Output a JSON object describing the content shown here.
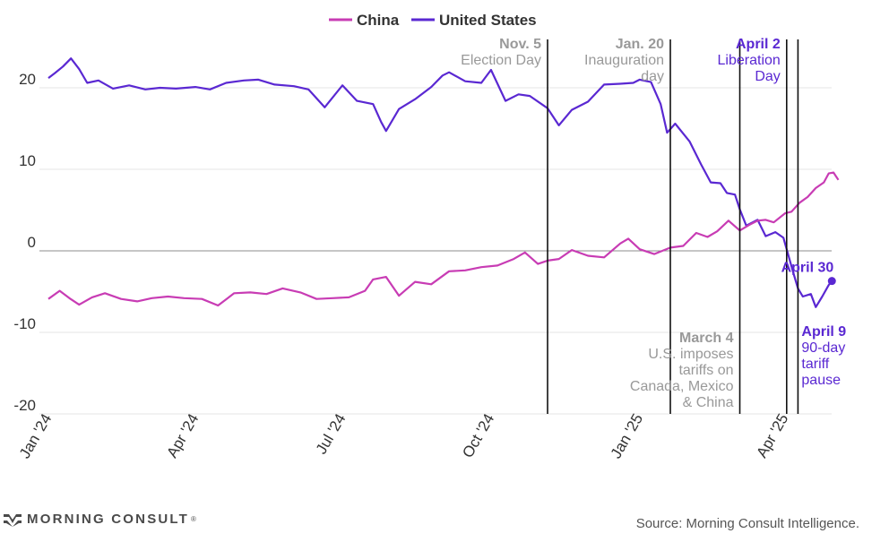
{
  "chart_data": {
    "type": "line",
    "legend": [
      {
        "name": "China",
        "color": "#c83cb4"
      },
      {
        "name": "United States",
        "color": "#5a28d2"
      }
    ],
    "legend_position": "top-center",
    "ylim": [
      -20,
      25
    ],
    "yticks": [
      20,
      10,
      0,
      -10,
      -20
    ],
    "ytick_labels": [
      "20",
      "10",
      "0",
      "-10",
      "-20"
    ],
    "xlim": [
      "2024-01-01",
      "2025-05-07"
    ],
    "xticks": [
      "2024-01-01",
      "2024-04-01",
      "2024-07-01",
      "2024-10-01",
      "2025-01-01",
      "2025-04-01"
    ],
    "xtick_labels": [
      "Jan '24",
      "Apr '24",
      "Jul '24",
      "Oct '24",
      "Jan '25",
      "Apr '25"
    ],
    "grid": "horizontal",
    "series": [
      {
        "name": "United States",
        "color": "#5a28d2",
        "points": [
          [
            "2024-01-01",
            21.2
          ],
          [
            "2024-01-05",
            21.8
          ],
          [
            "2024-01-10",
            22.6
          ],
          [
            "2024-01-15",
            23.6
          ],
          [
            "2024-01-20",
            22.3
          ],
          [
            "2024-01-25",
            20.6
          ],
          [
            "2024-02-01",
            20.9
          ],
          [
            "2024-02-10",
            19.9
          ],
          [
            "2024-02-20",
            20.3
          ],
          [
            "2024-03-01",
            19.8
          ],
          [
            "2024-03-10",
            20.0
          ],
          [
            "2024-03-20",
            19.9
          ],
          [
            "2024-04-01",
            20.1
          ],
          [
            "2024-04-10",
            19.8
          ],
          [
            "2024-04-20",
            20.6
          ],
          [
            "2024-05-01",
            20.9
          ],
          [
            "2024-05-10",
            21.0
          ],
          [
            "2024-05-20",
            20.4
          ],
          [
            "2024-06-01",
            20.2
          ],
          [
            "2024-06-10",
            19.8
          ],
          [
            "2024-06-20",
            17.6
          ],
          [
            "2024-07-01",
            20.3
          ],
          [
            "2024-07-10",
            18.4
          ],
          [
            "2024-07-20",
            18.0
          ],
          [
            "2024-07-25",
            15.8
          ],
          [
            "2024-07-28",
            14.7
          ],
          [
            "2024-08-05",
            17.4
          ],
          [
            "2024-08-15",
            18.6
          ],
          [
            "2024-08-25",
            20.1
          ],
          [
            "2024-09-01",
            21.5
          ],
          [
            "2024-09-05",
            21.9
          ],
          [
            "2024-09-15",
            20.8
          ],
          [
            "2024-09-25",
            20.6
          ],
          [
            "2024-10-01",
            22.2
          ],
          [
            "2024-10-10",
            18.4
          ],
          [
            "2024-10-18",
            19.2
          ],
          [
            "2024-10-25",
            19.0
          ],
          [
            "2024-11-05",
            17.5
          ],
          [
            "2024-11-12",
            15.4
          ],
          [
            "2024-11-20",
            17.3
          ],
          [
            "2024-11-30",
            18.3
          ],
          [
            "2024-12-10",
            20.4
          ],
          [
            "2024-12-20",
            20.5
          ],
          [
            "2024-12-28",
            20.6
          ],
          [
            "2025-01-01",
            21.0
          ],
          [
            "2025-01-08",
            20.7
          ],
          [
            "2025-01-14",
            18.0
          ],
          [
            "2025-01-18",
            14.5
          ],
          [
            "2025-01-23",
            15.6
          ],
          [
            "2025-02-01",
            13.4
          ],
          [
            "2025-02-08",
            10.6
          ],
          [
            "2025-02-14",
            8.4
          ],
          [
            "2025-02-20",
            8.3
          ],
          [
            "2025-02-24",
            7.1
          ],
          [
            "2025-03-01",
            6.9
          ],
          [
            "2025-03-04",
            5.1
          ],
          [
            "2025-03-08",
            3.1
          ],
          [
            "2025-03-15",
            3.8
          ],
          [
            "2025-03-20",
            1.8
          ],
          [
            "2025-03-26",
            2.3
          ],
          [
            "2025-03-31",
            1.6
          ],
          [
            "2025-04-03",
            -0.5
          ],
          [
            "2025-04-06",
            -2.6
          ],
          [
            "2025-04-09",
            -4.6
          ],
          [
            "2025-04-12",
            -5.6
          ],
          [
            "2025-04-17",
            -5.3
          ],
          [
            "2025-04-20",
            -6.9
          ],
          [
            "2025-04-24",
            -5.6
          ],
          [
            "2025-04-28",
            -4.2
          ],
          [
            "2025-04-30",
            -3.7
          ]
        ]
      },
      {
        "name": "China",
        "color": "#c83cb4",
        "points": [
          [
            "2024-01-01",
            -5.9
          ],
          [
            "2024-01-08",
            -4.9
          ],
          [
            "2024-01-14",
            -5.8
          ],
          [
            "2024-01-20",
            -6.6
          ],
          [
            "2024-01-28",
            -5.7
          ],
          [
            "2024-02-05",
            -5.2
          ],
          [
            "2024-02-15",
            -5.9
          ],
          [
            "2024-02-25",
            -6.2
          ],
          [
            "2024-03-05",
            -5.8
          ],
          [
            "2024-03-15",
            -5.6
          ],
          [
            "2024-03-25",
            -5.8
          ],
          [
            "2024-04-05",
            -5.9
          ],
          [
            "2024-04-15",
            -6.7
          ],
          [
            "2024-04-25",
            -5.2
          ],
          [
            "2024-05-05",
            -5.1
          ],
          [
            "2024-05-15",
            -5.3
          ],
          [
            "2024-05-25",
            -4.6
          ],
          [
            "2024-06-05",
            -5.1
          ],
          [
            "2024-06-15",
            -5.9
          ],
          [
            "2024-06-25",
            -5.8
          ],
          [
            "2024-07-05",
            -5.7
          ],
          [
            "2024-07-15",
            -4.9
          ],
          [
            "2024-07-20",
            -3.5
          ],
          [
            "2024-07-28",
            -3.2
          ],
          [
            "2024-08-05",
            -5.5
          ],
          [
            "2024-08-15",
            -3.8
          ],
          [
            "2024-08-25",
            -4.1
          ],
          [
            "2024-09-05",
            -2.5
          ],
          [
            "2024-09-15",
            -2.4
          ],
          [
            "2024-09-25",
            -2.0
          ],
          [
            "2024-10-05",
            -1.8
          ],
          [
            "2024-10-15",
            -1.0
          ],
          [
            "2024-10-22",
            -0.2
          ],
          [
            "2024-10-30",
            -1.6
          ],
          [
            "2024-11-05",
            -1.2
          ],
          [
            "2024-11-12",
            -1.0
          ],
          [
            "2024-11-20",
            0.1
          ],
          [
            "2024-11-30",
            -0.6
          ],
          [
            "2024-12-10",
            -0.8
          ],
          [
            "2024-12-20",
            0.9
          ],
          [
            "2024-12-25",
            1.5
          ],
          [
            "2025-01-01",
            0.2
          ],
          [
            "2025-01-10",
            -0.4
          ],
          [
            "2025-01-20",
            0.4
          ],
          [
            "2025-01-28",
            0.6
          ],
          [
            "2025-02-05",
            2.2
          ],
          [
            "2025-02-12",
            1.7
          ],
          [
            "2025-02-18",
            2.4
          ],
          [
            "2025-02-25",
            3.7
          ],
          [
            "2025-03-04",
            2.5
          ],
          [
            "2025-03-10",
            3.2
          ],
          [
            "2025-03-15",
            3.7
          ],
          [
            "2025-03-20",
            3.8
          ],
          [
            "2025-03-25",
            3.5
          ],
          [
            "2025-04-01",
            4.6
          ],
          [
            "2025-04-05",
            4.8
          ],
          [
            "2025-04-10",
            5.9
          ],
          [
            "2025-04-15",
            6.6
          ],
          [
            "2025-04-20",
            7.7
          ],
          [
            "2025-04-25",
            8.4
          ],
          [
            "2025-04-28",
            9.5
          ],
          [
            "2025-05-01",
            9.6
          ],
          [
            "2025-05-04",
            8.7
          ]
        ]
      }
    ],
    "events": [
      {
        "date": "2024-11-05",
        "title": "Nov. 5",
        "label": "Election Day",
        "color": "#999999",
        "label_pos": "top-left"
      },
      {
        "date": "2025-01-20",
        "title": "Jan. 20",
        "label": "Inauguration day",
        "color": "#999999",
        "label_pos": "top-left"
      },
      {
        "date": "2025-03-04",
        "title": "March 4",
        "label": "U.S. imposes tariffs on Canada, Mexico & China",
        "color": "#999999",
        "label_pos": "bottom-left"
      },
      {
        "date": "2025-04-02",
        "title": "April 2",
        "label": "Liberation Day",
        "color": "#5a28d2",
        "label_pos": "top-left"
      },
      {
        "date": "2025-04-09",
        "title": "April 9",
        "label": "90-day tariff pause",
        "color": "#5a28d2",
        "label_pos": "bottom-right"
      }
    ],
    "point_annotations": [
      {
        "series": "United States",
        "date": "2025-04-30",
        "label": "April 30",
        "color": "#5a28d2"
      }
    ]
  },
  "footer": {
    "logo_text": "MORNING CONSULT",
    "logo_mark": "®",
    "source": "Source: Morning Consult Intelligence."
  }
}
